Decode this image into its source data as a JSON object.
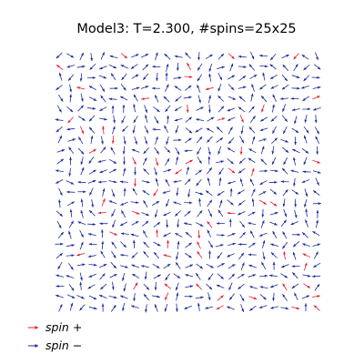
{
  "figure": {
    "title": "Model3: T=2.300, #spins=25x25"
  },
  "legend": {
    "items": [
      {
        "symbol": "spin",
        "sign": "+",
        "color": "#e8192c"
      },
      {
        "symbol": "spin",
        "sign": "−",
        "color": "#1b2a9e"
      }
    ]
  },
  "chart_data": {
    "type": "quiver",
    "title": "Model3: T=2.300, #spins=25x25",
    "lattice": {
      "rows": 25,
      "cols": 25
    },
    "temperature": 2.3,
    "series": [
      {
        "name": "spin +",
        "color": "#e8192c"
      },
      {
        "name": "spin −",
        "color": "#1b2a9e"
      }
    ],
    "positive_spin_fraction": 0.12,
    "axes_visible": false
  }
}
